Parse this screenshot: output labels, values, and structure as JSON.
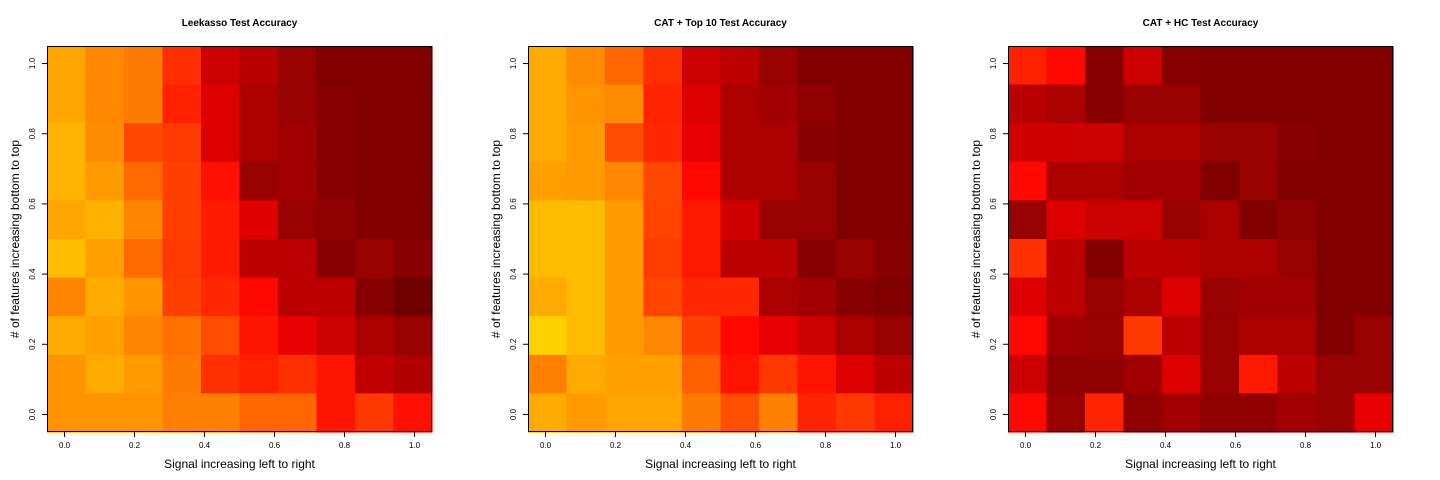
{
  "chart_data": [
    {
      "type": "heatmap",
      "title": "Leekasso Test Accuracy",
      "xlabel": "Signal increasing left to right",
      "ylabel": "# of features increasing bottom to top",
      "xlim": [
        -0.05,
        1.05
      ],
      "ylim": [
        -0.05,
        1.05
      ],
      "x_ticks": [
        "0.0",
        "0.2",
        "0.4",
        "0.6",
        "0.8",
        "1.0"
      ],
      "y_ticks": [
        "0.0",
        "0.2",
        "0.4",
        "0.6",
        "0.8",
        "1.0"
      ],
      "grid": false,
      "rows_top_to_bottom": [
        [
          "#FFA500",
          "#FF8800",
          "#FF7A00",
          "#FF2E00",
          "#CC0000",
          "#B80000",
          "#990000",
          "#800000",
          "#800000",
          "#800000"
        ],
        [
          "#FFA500",
          "#FF8800",
          "#FF7A00",
          "#FF2000",
          "#DD0000",
          "#AA0000",
          "#990000",
          "#880000",
          "#800000",
          "#800000"
        ],
        [
          "#FFB300",
          "#FF8C00",
          "#FF4800",
          "#FF3A00",
          "#DD0000",
          "#AA0000",
          "#A00000",
          "#880000",
          "#800000",
          "#800000"
        ],
        [
          "#FFB300",
          "#FF9A00",
          "#FF6A00",
          "#FF4000",
          "#FF1000",
          "#990000",
          "#A00000",
          "#880000",
          "#800000",
          "#800000"
        ],
        [
          "#FFA500",
          "#FFB000",
          "#FF8400",
          "#FF4000",
          "#FF1C00",
          "#E00000",
          "#990000",
          "#900000",
          "#800000",
          "#800000"
        ],
        [
          "#FFBB00",
          "#FFA000",
          "#FF6A00",
          "#FF3A00",
          "#FF1C00",
          "#BB0000",
          "#BB0000",
          "#880000",
          "#990000",
          "#880000"
        ],
        [
          "#FF8400",
          "#FFAA00",
          "#FF9400",
          "#FF4000",
          "#FF2800",
          "#FF0800",
          "#BB0000",
          "#BB0000",
          "#880000",
          "#700000"
        ],
        [
          "#FFAA00",
          "#FFA000",
          "#FF8400",
          "#FF7200",
          "#FF4C00",
          "#FF1400",
          "#E80000",
          "#CC0000",
          "#AA0000",
          "#990000"
        ],
        [
          "#FF9400",
          "#FFAA00",
          "#FF9A00",
          "#FF7A00",
          "#FF3000",
          "#FF2000",
          "#FF3000",
          "#FF1400",
          "#C00000",
          "#B00000"
        ],
        [
          "#FF9400",
          "#FF9400",
          "#FF9400",
          "#FF8000",
          "#FF8000",
          "#FF6600",
          "#FF6600",
          "#FF1400",
          "#FF3800",
          "#FF1000"
        ]
      ]
    },
    {
      "type": "heatmap",
      "title": "CAT + Top 10 Test Accuracy",
      "xlabel": "Signal increasing left to right",
      "ylabel": "# of features increasing bottom to top",
      "xlim": [
        -0.05,
        1.05
      ],
      "ylim": [
        -0.05,
        1.05
      ],
      "x_ticks": [
        "0.0",
        "0.2",
        "0.4",
        "0.6",
        "0.8",
        "1.0"
      ],
      "y_ticks": [
        "0.0",
        "0.2",
        "0.4",
        "0.6",
        "0.8",
        "1.0"
      ],
      "grid": false,
      "rows_top_to_bottom": [
        [
          "#FFAA00",
          "#FF8C00",
          "#FF6600",
          "#FF3000",
          "#CC0000",
          "#BB0000",
          "#990000",
          "#800000",
          "#800000",
          "#800000"
        ],
        [
          "#FFAA00",
          "#FF9400",
          "#FF8C00",
          "#FF2400",
          "#DD0000",
          "#AA0000",
          "#A00000",
          "#900000",
          "#800000",
          "#800000"
        ],
        [
          "#FFAA00",
          "#FF9A00",
          "#FF4C00",
          "#FF2800",
          "#E80000",
          "#AA0000",
          "#AA0000",
          "#880000",
          "#800000",
          "#800000"
        ],
        [
          "#FFA000",
          "#FF9A00",
          "#FF8800",
          "#FF4800",
          "#FF0800",
          "#AA0000",
          "#AA0000",
          "#990000",
          "#800000",
          "#800000"
        ],
        [
          "#FFBB00",
          "#FFBB00",
          "#FF9A00",
          "#FF4400",
          "#FF1800",
          "#D00000",
          "#990000",
          "#990000",
          "#800000",
          "#800000"
        ],
        [
          "#FFBB00",
          "#FFBB00",
          "#FF9A00",
          "#FF3C00",
          "#FF1800",
          "#BB0000",
          "#BB0000",
          "#880000",
          "#990000",
          "#880000"
        ],
        [
          "#FFAA00",
          "#FFBB00",
          "#FF9A00",
          "#FF4400",
          "#FF2800",
          "#FF2800",
          "#AA0000",
          "#A00000",
          "#880000",
          "#800000"
        ],
        [
          "#FFD000",
          "#FFBB00",
          "#FF9A00",
          "#FF8800",
          "#FF4000",
          "#FF0800",
          "#E80000",
          "#CC0000",
          "#AA0000",
          "#990000"
        ],
        [
          "#FF8000",
          "#FFAA00",
          "#FFA000",
          "#FFA000",
          "#FF6000",
          "#FF1400",
          "#FF3800",
          "#FF1400",
          "#DD0000",
          "#BB0000"
        ],
        [
          "#FFAA00",
          "#FF9A00",
          "#FFA500",
          "#FFA500",
          "#FF7A00",
          "#FF5000",
          "#FF8000",
          "#FF2400",
          "#FF3800",
          "#FF2000"
        ]
      ]
    },
    {
      "type": "heatmap",
      "title": "CAT + HC Test Accuracy",
      "xlabel": "Signal increasing left to right",
      "ylabel": "# of features increasing bottom to top",
      "xlim": [
        -0.05,
        1.05
      ],
      "ylim": [
        -0.05,
        1.05
      ],
      "x_ticks": [
        "0.0",
        "0.2",
        "0.4",
        "0.6",
        "0.8",
        "1.0"
      ],
      "y_ticks": [
        "0.0",
        "0.2",
        "0.4",
        "0.6",
        "0.8",
        "1.0"
      ],
      "grid": false,
      "rows_top_to_bottom": [
        [
          "#FF2000",
          "#FF0800",
          "#880000",
          "#CC0000",
          "#880000",
          "#800000",
          "#800000",
          "#800000",
          "#800000",
          "#800000"
        ],
        [
          "#B80000",
          "#AA0000",
          "#880000",
          "#990000",
          "#990000",
          "#800000",
          "#800000",
          "#800000",
          "#800000",
          "#800000"
        ],
        [
          "#D00000",
          "#D00000",
          "#CC0000",
          "#AA0000",
          "#AA0000",
          "#990000",
          "#990000",
          "#880000",
          "#800000",
          "#800000"
        ],
        [
          "#FF0800",
          "#AA0000",
          "#AA0000",
          "#A00000",
          "#A00000",
          "#800000",
          "#990000",
          "#800000",
          "#800000",
          "#800000"
        ],
        [
          "#990000",
          "#DD0000",
          "#CC0000",
          "#CC0000",
          "#990000",
          "#AA0000",
          "#800000",
          "#900000",
          "#800000",
          "#800000"
        ],
        [
          "#FF3000",
          "#BB0000",
          "#800000",
          "#BB0000",
          "#BB0000",
          "#AA0000",
          "#AA0000",
          "#990000",
          "#800000",
          "#800000"
        ],
        [
          "#DD0000",
          "#BB0000",
          "#990000",
          "#AA0000",
          "#DD0000",
          "#990000",
          "#A00000",
          "#A00000",
          "#800000",
          "#800000"
        ],
        [
          "#FF0800",
          "#A00000",
          "#990000",
          "#FF3800",
          "#BB0000",
          "#990000",
          "#AA0000",
          "#AA0000",
          "#800000",
          "#990000"
        ],
        [
          "#CC0000",
          "#900000",
          "#900000",
          "#A00000",
          "#DD0000",
          "#990000",
          "#FF1800",
          "#BB0000",
          "#990000",
          "#990000"
        ],
        [
          "#FF0800",
          "#990000",
          "#FF2400",
          "#900000",
          "#A00000",
          "#900000",
          "#900000",
          "#A00000",
          "#990000",
          "#E80000"
        ]
      ]
    }
  ]
}
